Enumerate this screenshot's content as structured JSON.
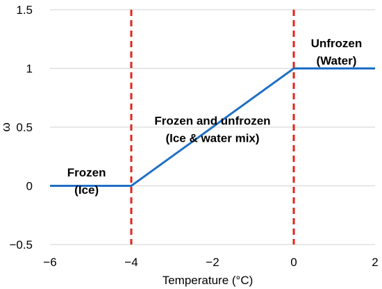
{
  "chart_data": {
    "type": "line",
    "title": "",
    "xlabel": "Temperature (°C)",
    "ylabel": "ω",
    "xlim": [
      -6,
      2
    ],
    "ylim": [
      -0.5,
      1.5
    ],
    "x_ticks": [
      -6,
      -4,
      -2,
      0,
      2
    ],
    "x_tick_labels": [
      "−6",
      "−4",
      "−2",
      "0",
      "2"
    ],
    "y_ticks": [
      -0.5,
      0,
      0.5,
      1,
      1.5
    ],
    "y_tick_labels": [
      "−0.5",
      "0",
      "0.5",
      "1",
      "1.5"
    ],
    "grid": "horizontal",
    "series": [
      {
        "x": [
          -6,
          -4,
          0,
          2
        ],
        "y": [
          0,
          0,
          1,
          1
        ],
        "color": "#1f6fc5"
      }
    ],
    "vertical_lines": [
      {
        "x": -4,
        "color": "#e3241b",
        "style": "dashed"
      },
      {
        "x": 0,
        "color": "#e3241b",
        "style": "dashed"
      }
    ],
    "annotations": [
      {
        "lines": [
          "Frozen",
          "(Ice)"
        ],
        "x": -5.1,
        "y": 0.08
      },
      {
        "lines": [
          "Frozen and unfrozen",
          "(Ice & water mix)"
        ],
        "x": -2.0,
        "y": 0.52
      },
      {
        "lines": [
          "Unfrozen",
          "(Water)"
        ],
        "x": 1.05,
        "y": 1.18
      }
    ]
  }
}
